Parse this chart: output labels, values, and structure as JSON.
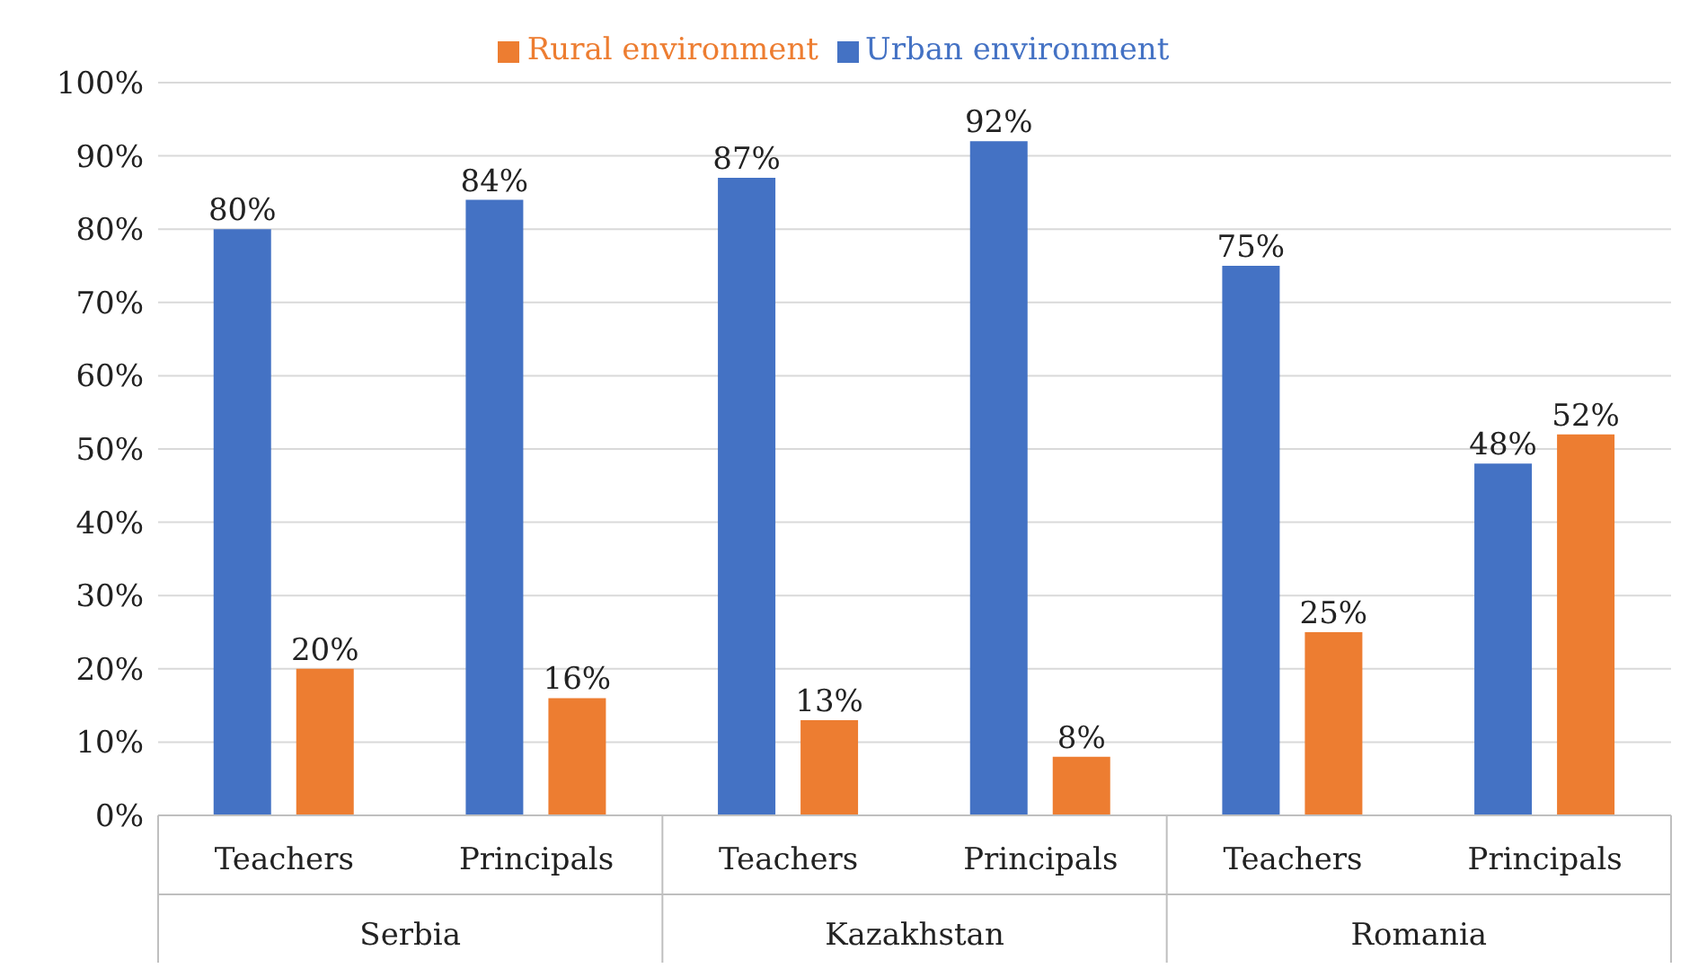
{
  "chart_data": {
    "type": "bar",
    "categories": [
      "Teachers",
      "Principals",
      "Teachers",
      "Principals",
      "Teachers",
      "Principals"
    ],
    "annotations": [
      "Serbia",
      "Kazakhstan",
      "Romania"
    ],
    "series": [
      {
        "name": "Urban environment",
        "color": "#4472c4",
        "values": [
          80,
          84,
          87,
          92,
          75,
          48
        ],
        "value_labels": [
          "80%",
          "84%",
          "87%",
          "92%",
          "75%",
          "48%"
        ]
      },
      {
        "name": "Rural environment",
        "color": "#ed7d31",
        "values": [
          20,
          16,
          13,
          8,
          25,
          52
        ],
        "value_labels": [
          "20%",
          "16%",
          "13%",
          "8%",
          "25%",
          "52%"
        ]
      }
    ],
    "ylim": [
      0,
      100
    ],
    "yticks": [
      {
        "value": 0,
        "label": "0%"
      },
      {
        "value": 10,
        "label": "10%"
      },
      {
        "value": 20,
        "label": "20%"
      },
      {
        "value": 30,
        "label": "30%"
      },
      {
        "value": 40,
        "label": "40%"
      },
      {
        "value": 50,
        "label": "50%"
      },
      {
        "value": 60,
        "label": "60%"
      },
      {
        "value": 70,
        "label": "70%"
      },
      {
        "value": 80,
        "label": "80%"
      },
      {
        "value": 90,
        "label": "90%"
      },
      {
        "value": 100,
        "label": "100%"
      }
    ],
    "grid": "y",
    "legend": "top"
  }
}
